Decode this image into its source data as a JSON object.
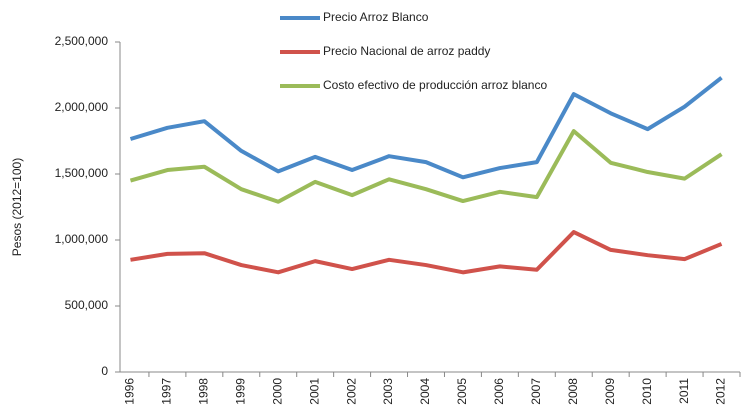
{
  "chart_data": {
    "type": "line",
    "y_label": "Pesos (2012=100)",
    "categories": [
      "1996",
      "1997",
      "1998",
      "1999",
      "2000",
      "2001",
      "2002",
      "2003",
      "2004",
      "2005",
      "2006",
      "2007",
      "2008",
      "2009",
      "2010",
      "2011",
      "2012"
    ],
    "series": [
      {
        "name": "Precio Arroz Blanco",
        "color": "#4a89c8",
        "values": [
          1765000,
          1850000,
          1900000,
          1675000,
          1520000,
          1630000,
          1530000,
          1635000,
          1590000,
          1475000,
          1545000,
          1590000,
          2105000,
          1960000,
          1840000,
          2010000,
          2230000
        ]
      },
      {
        "name": "Precio Nacional de arroz paddy",
        "color": "#d0524b",
        "values": [
          850000,
          895000,
          900000,
          810000,
          755000,
          840000,
          780000,
          850000,
          810000,
          755000,
          800000,
          775000,
          1060000,
          925000,
          885000,
          855000,
          970000
        ]
      },
      {
        "name": "Costo efectivo de producción arroz blanco",
        "color": "#9bbb59",
        "values": [
          1450000,
          1530000,
          1555000,
          1385000,
          1290000,
          1440000,
          1340000,
          1460000,
          1385000,
          1295000,
          1365000,
          1325000,
          1825000,
          1585000,
          1515000,
          1465000,
          1650000
        ]
      }
    ],
    "ylim": [
      0,
      2500000
    ],
    "yticks": [
      0,
      {
        "value": 500000,
        "label": "500,000"
      },
      {
        "value": 1000000,
        "label": "1,000,000"
      },
      {
        "value": 1500000,
        "label": "1,500,000"
      },
      {
        "value": 2000000,
        "label": "2,000,000"
      },
      {
        "value": 2500000,
        "label": "2,500,000"
      }
    ],
    "grid": false,
    "legend": "top"
  }
}
